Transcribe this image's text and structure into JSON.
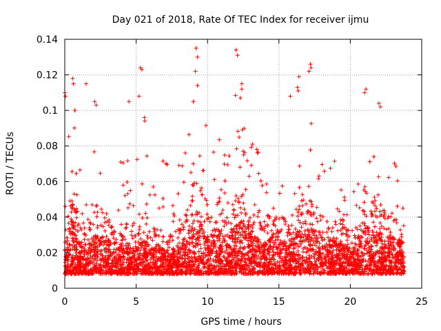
{
  "chart_data": {
    "type": "scatter",
    "title": "Day 021 of 2018, Rate Of TEC Index for receiver ijmu",
    "xlabel": "GPS time / hours",
    "ylabel": "ROTI / TECUs",
    "xlim": [
      0,
      25
    ],
    "ylim": [
      0,
      0.14
    ],
    "x_ticks": [
      0,
      5,
      10,
      15,
      20,
      25
    ],
    "x_tick_labels": [
      "0",
      "5",
      "10",
      "15",
      "20",
      "25"
    ],
    "y_ticks": [
      0,
      0.02,
      0.04,
      0.06,
      0.08,
      0.1,
      0.12,
      0.14
    ],
    "y_tick_labels": [
      "0",
      "0.02",
      "0.04",
      "0.06",
      "0.08",
      "0.1",
      "0.12",
      "0.14"
    ],
    "grid": true,
    "marker": "+",
    "series": [
      {
        "name": "ROTI",
        "color": "#ff0000",
        "x_range": [
          0,
          23.8
        ],
        "envelope": {
          "x": [
            0,
            0.3,
            0.6,
            1.0,
            1.5,
            2.0,
            2.5,
            3.0,
            3.5,
            4.0,
            4.5,
            5.0,
            5.5,
            6.0,
            6.5,
            7.0,
            7.5,
            8.0,
            8.5,
            9.0,
            9.5,
            10.0,
            10.5,
            11.0,
            11.5,
            12.0,
            12.5,
            13.0,
            13.5,
            14.0,
            14.5,
            15.0,
            15.5,
            16.0,
            16.5,
            17.0,
            17.5,
            18.0,
            18.5,
            19.0,
            19.5,
            20.0,
            20.5,
            21.0,
            21.5,
            22.0,
            22.5,
            23.0,
            23.8
          ],
          "upper": [
            0.09,
            0.1,
            0.11,
            0.07,
            0.05,
            0.08,
            0.1,
            0.09,
            0.05,
            0.08,
            0.09,
            0.07,
            0.11,
            0.06,
            0.07,
            0.08,
            0.07,
            0.07,
            0.09,
            0.12,
            0.1,
            0.1,
            0.09,
            0.09,
            0.08,
            0.12,
            0.1,
            0.09,
            0.08,
            0.07,
            0.08,
            0.09,
            0.06,
            0.08,
            0.1,
            0.11,
            0.09,
            0.09,
            0.08,
            0.07,
            0.06,
            0.05,
            0.06,
            0.1,
            0.08,
            0.09,
            0.07,
            0.08,
            0.05
          ],
          "typical": [
            0.025,
            0.04,
            0.045,
            0.03,
            0.025,
            0.035,
            0.035,
            0.035,
            0.025,
            0.03,
            0.03,
            0.025,
            0.035,
            0.025,
            0.03,
            0.025,
            0.025,
            0.03,
            0.035,
            0.05,
            0.045,
            0.035,
            0.04,
            0.04,
            0.035,
            0.045,
            0.045,
            0.035,
            0.035,
            0.03,
            0.035,
            0.045,
            0.03,
            0.035,
            0.04,
            0.04,
            0.04,
            0.035,
            0.035,
            0.03,
            0.03,
            0.025,
            0.025,
            0.045,
            0.04,
            0.04,
            0.035,
            0.035,
            0.03
          ],
          "floor": 0.008
        },
        "outliers": [
          {
            "x": 0.0,
            "y": 0.11
          },
          {
            "x": 0.05,
            "y": 0.108
          },
          {
            "x": 0.55,
            "y": 0.118
          },
          {
            "x": 0.6,
            "y": 0.115
          },
          {
            "x": 0.7,
            "y": 0.1
          },
          {
            "x": 1.5,
            "y": 0.115
          },
          {
            "x": 2.1,
            "y": 0.105
          },
          {
            "x": 2.2,
            "y": 0.103
          },
          {
            "x": 4.5,
            "y": 0.105
          },
          {
            "x": 5.3,
            "y": 0.124
          },
          {
            "x": 5.4,
            "y": 0.123
          },
          {
            "x": 5.2,
            "y": 0.108
          },
          {
            "x": 9.2,
            "y": 0.135
          },
          {
            "x": 9.3,
            "y": 0.13
          },
          {
            "x": 9.15,
            "y": 0.122
          },
          {
            "x": 9.3,
            "y": 0.114
          },
          {
            "x": 9.0,
            "y": 0.105
          },
          {
            "x": 12.0,
            "y": 0.134
          },
          {
            "x": 12.1,
            "y": 0.131
          },
          {
            "x": 12.4,
            "y": 0.115
          },
          {
            "x": 12.4,
            "y": 0.112
          },
          {
            "x": 12.3,
            "y": 0.107
          },
          {
            "x": 16.4,
            "y": 0.119
          },
          {
            "x": 16.3,
            "y": 0.113
          },
          {
            "x": 16.35,
            "y": 0.111
          },
          {
            "x": 17.2,
            "y": 0.126
          },
          {
            "x": 17.25,
            "y": 0.124
          },
          {
            "x": 17.1,
            "y": 0.122
          },
          {
            "x": 15.8,
            "y": 0.108
          },
          {
            "x": 21.1,
            "y": 0.112
          },
          {
            "x": 21.0,
            "y": 0.11
          },
          {
            "x": 22.0,
            "y": 0.104
          },
          {
            "x": 22.1,
            "y": 0.102
          }
        ]
      }
    ]
  }
}
